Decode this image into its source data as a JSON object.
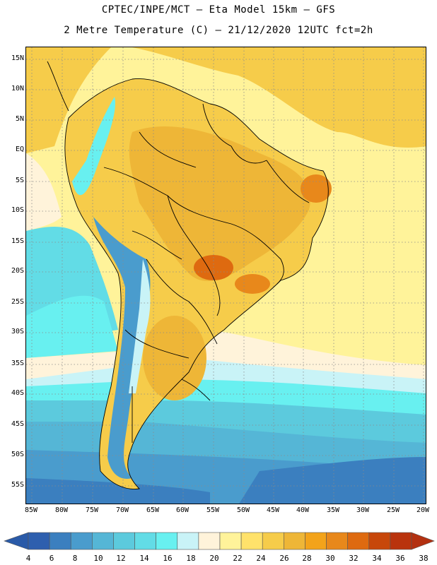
{
  "header": {
    "line1": "CPTEC/INPE/MCT –  Eta Model 15km – GFS",
    "line2": "2 Metre Temperature (C) – 21/12/2020 12UTC fct=2h"
  },
  "axes": {
    "lat_labels": [
      "15N",
      "10N",
      "5N",
      "EQ",
      "5S",
      "10S",
      "15S",
      "20S",
      "25S",
      "30S",
      "35S",
      "40S",
      "45S",
      "50S",
      "55S"
    ],
    "lon_labels": [
      "85W",
      "80W",
      "75W",
      "70W",
      "65W",
      "60W",
      "55W",
      "50W",
      "45W",
      "40W",
      "35W",
      "30W",
      "25W",
      "20W"
    ]
  },
  "colorbar": {
    "values": [
      "4",
      "6",
      "8",
      "10",
      "12",
      "14",
      "16",
      "18",
      "20",
      "22",
      "24",
      "26",
      "28",
      "30",
      "32",
      "34",
      "36",
      "38"
    ],
    "colors": [
      "#2e5fae",
      "#3b7fbf",
      "#4a9ccd",
      "#55b6d6",
      "#5ccadd",
      "#62dce6",
      "#68f0f0",
      "#c9f3f7",
      "#fff3da",
      "#fff39a",
      "#ffe26b",
      "#f6cc4a",
      "#eeb637",
      "#f3a31a",
      "#e8881b",
      "#de6a10",
      "#c7470a",
      "#b9330d"
    ],
    "under_color": "#2a5aa8",
    "over_color": "#b33010"
  }
}
